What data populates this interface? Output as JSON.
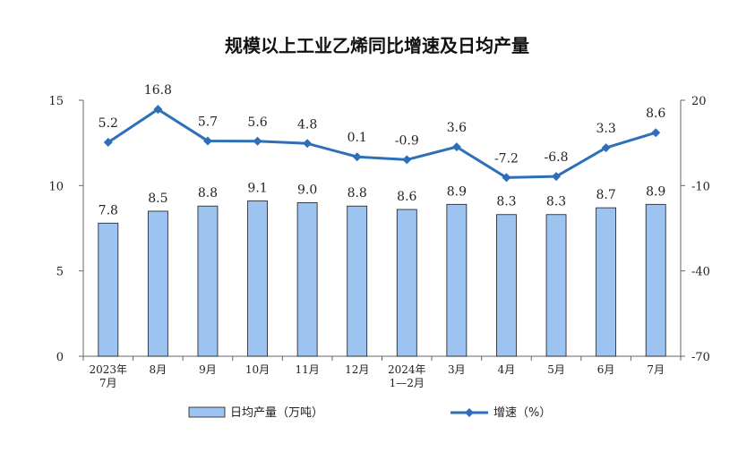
{
  "chart_data": {
    "type": "bar+line",
    "title": "规模以上工业乙烯同比增速及日均产量",
    "categories": [
      [
        "2023年",
        "7月"
      ],
      [
        "8月"
      ],
      [
        "9月"
      ],
      [
        "10月"
      ],
      [
        "11月"
      ],
      [
        "12月"
      ],
      [
        "2024年",
        "1—2月"
      ],
      [
        "3月"
      ],
      [
        "4月"
      ],
      [
        "5月"
      ],
      [
        "6月"
      ],
      [
        "7月"
      ]
    ],
    "series": [
      {
        "name": "日均产量（万吨）",
        "type": "bar",
        "axis": "left",
        "values": [
          7.8,
          8.5,
          8.8,
          9.1,
          9.0,
          8.8,
          8.6,
          8.9,
          8.3,
          8.3,
          8.7,
          8.9
        ],
        "labels": [
          "7.8",
          "8.5",
          "8.8",
          "9.1",
          "9.0",
          "8.8",
          "8.6",
          "8.9",
          "8.3",
          "8.3",
          "8.7",
          "8.9"
        ],
        "color": "#9dc3f0"
      },
      {
        "name": "增速（%）",
        "type": "line",
        "axis": "right",
        "values": [
          5.2,
          16.8,
          5.7,
          5.6,
          4.8,
          0.1,
          -0.9,
          3.6,
          -7.2,
          -6.8,
          3.3,
          8.6
        ],
        "labels": [
          "5.2",
          "16.8",
          "5.7",
          "5.6",
          "4.8",
          "0.1",
          "-0.9",
          "3.6",
          "-7.2",
          "-6.8",
          "3.3",
          "8.6"
        ],
        "color": "#2e6fba"
      }
    ],
    "y_left": {
      "range": [
        0,
        15
      ],
      "ticks": [
        "0",
        "5",
        "10",
        "15"
      ]
    },
    "y_right": {
      "range": [
        -70,
        20
      ],
      "ticks": [
        "-70",
        "-40",
        "-10",
        "20"
      ]
    },
    "legend_position": "bottom",
    "grid": false
  }
}
